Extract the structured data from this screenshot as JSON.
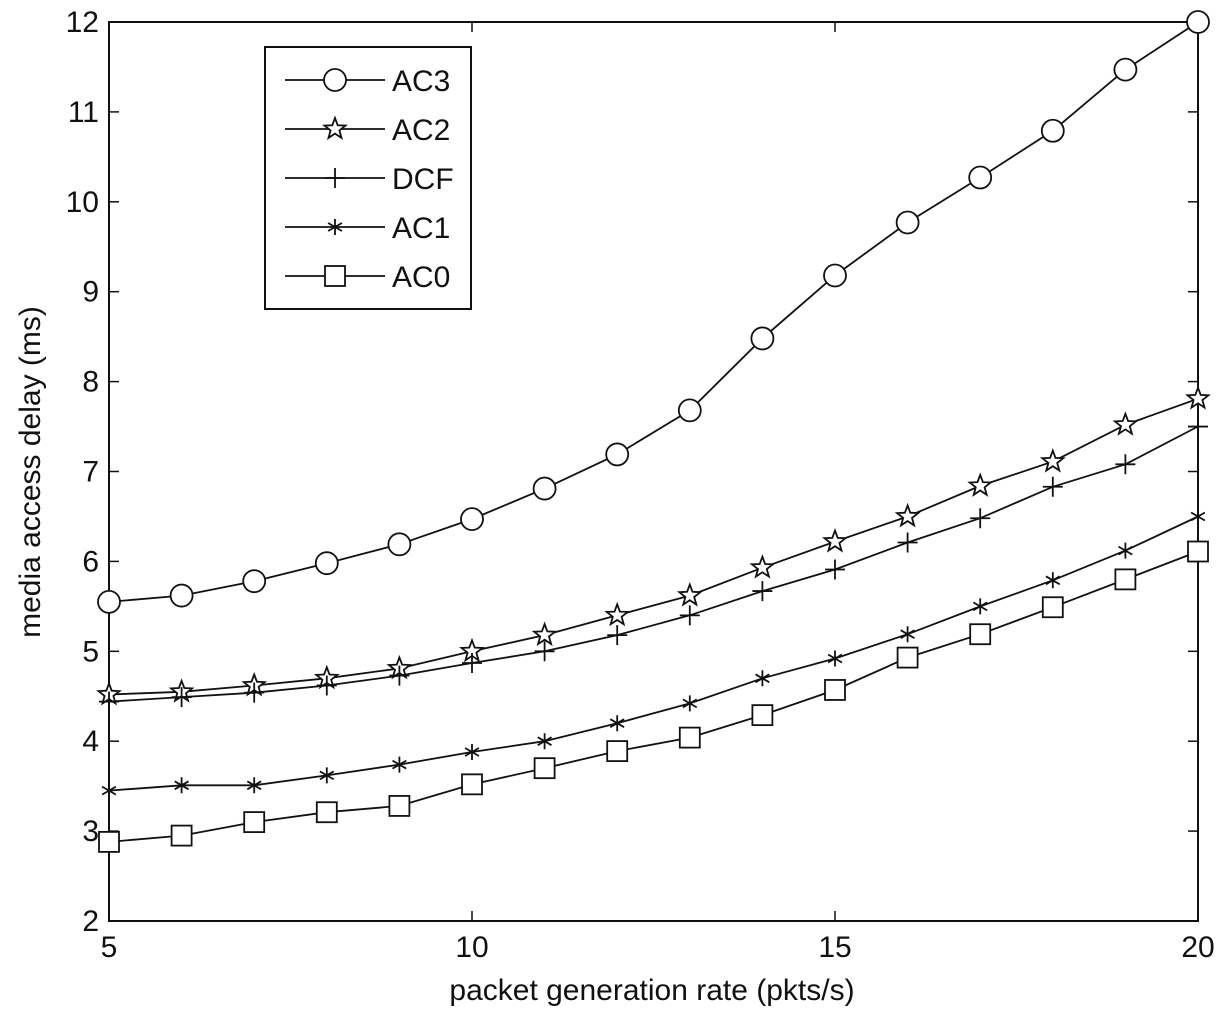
{
  "chart_data": {
    "type": "line",
    "xlabel": "packet generation rate (pkts/s)",
    "ylabel": "media access delay (ms)",
    "xlim": [
      5,
      20
    ],
    "ylim": [
      2,
      12
    ],
    "x_ticks": [
      "5",
      "10",
      "15",
      "20"
    ],
    "y_ticks": [
      "2",
      "3",
      "4",
      "5",
      "6",
      "7",
      "8",
      "9",
      "10",
      "11",
      "12"
    ],
    "grid": false,
    "legend_position": "top-left",
    "x": [
      5,
      6,
      7,
      8,
      9,
      10,
      11,
      12,
      13,
      14,
      15,
      16,
      17,
      18,
      19,
      20
    ],
    "series": [
      {
        "name": "AC3",
        "marker": "circle",
        "values": [
          5.55,
          5.62,
          5.78,
          5.98,
          6.19,
          6.47,
          6.81,
          7.19,
          7.68,
          8.48,
          9.18,
          9.77,
          10.27,
          10.79,
          11.47,
          12.0
        ]
      },
      {
        "name": "AC2",
        "marker": "pentagram",
        "values": [
          4.52,
          4.55,
          4.62,
          4.7,
          4.81,
          5.0,
          5.18,
          5.4,
          5.62,
          5.93,
          6.22,
          6.5,
          6.84,
          7.11,
          7.52,
          7.81
        ]
      },
      {
        "name": "DCF",
        "marker": "plus",
        "values": [
          4.44,
          4.49,
          4.54,
          4.62,
          4.73,
          4.87,
          5.0,
          5.18,
          5.4,
          5.67,
          5.91,
          6.21,
          6.48,
          6.83,
          7.08,
          7.5
        ]
      },
      {
        "name": "AC1",
        "marker": "asterisk",
        "values": [
          3.45,
          3.51,
          3.51,
          3.62,
          3.74,
          3.88,
          4.0,
          4.2,
          4.42,
          4.7,
          4.92,
          5.19,
          5.5,
          5.79,
          6.12,
          6.5
        ]
      },
      {
        "name": "AC0",
        "marker": "square",
        "values": [
          2.88,
          2.95,
          3.1,
          3.21,
          3.28,
          3.52,
          3.7,
          3.89,
          4.04,
          4.29,
          4.57,
          4.93,
          5.19,
          5.49,
          5.8,
          6.11
        ]
      }
    ]
  }
}
